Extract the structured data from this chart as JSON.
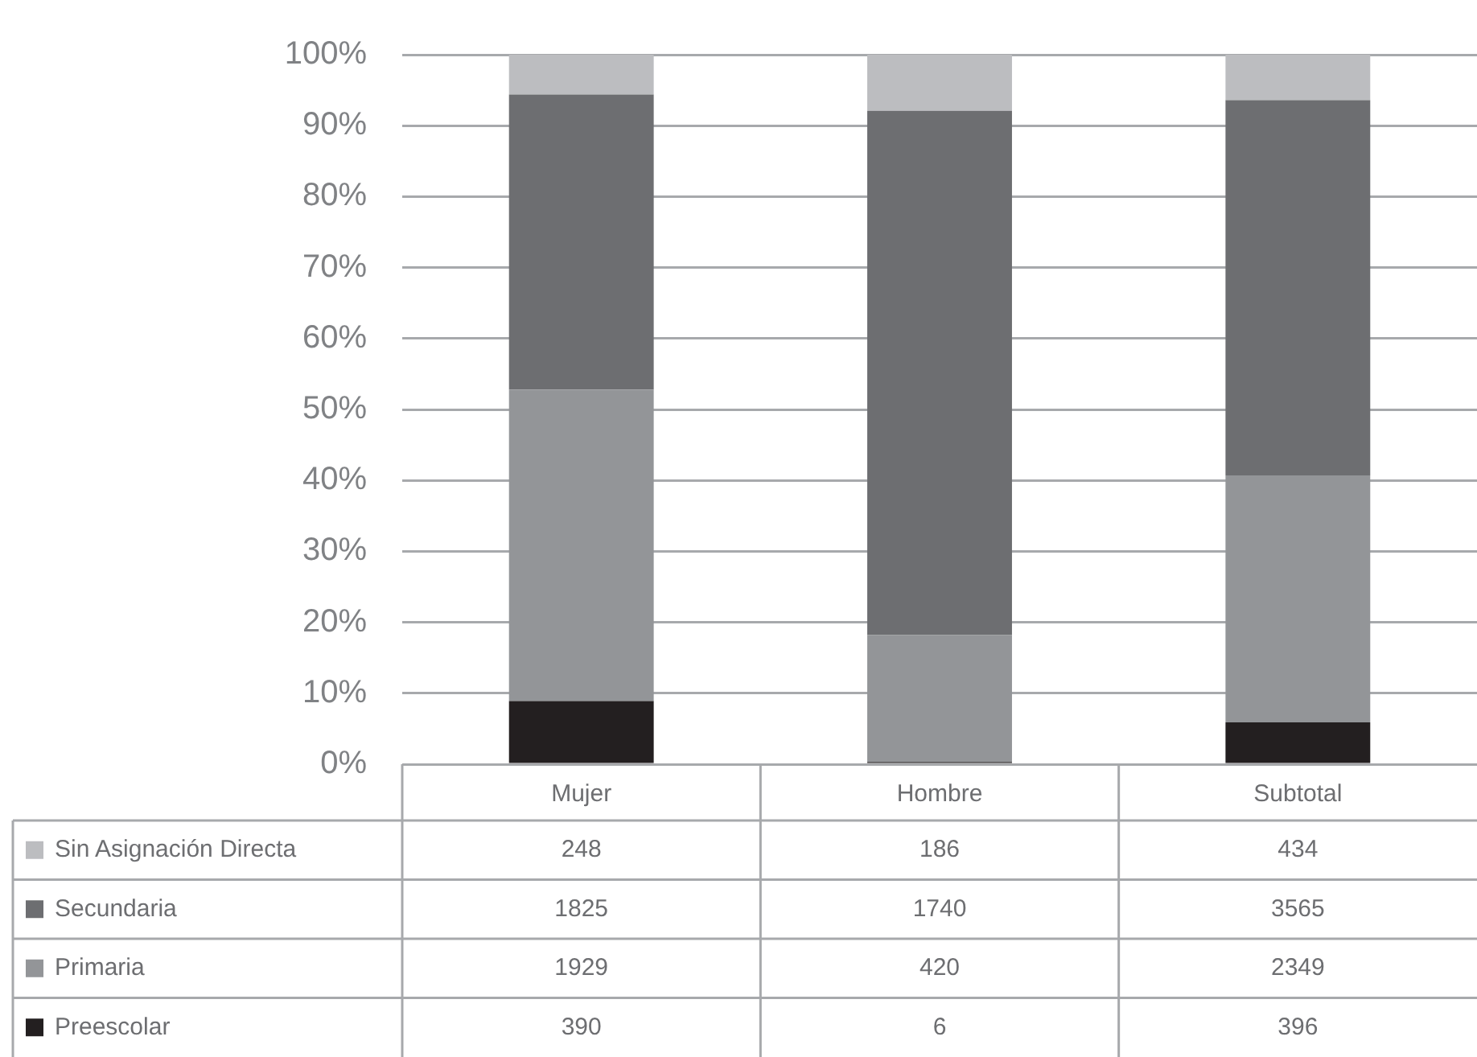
{
  "chart_data": {
    "type": "bar",
    "stacked": true,
    "categories": [
      "Mujer",
      "Hombre",
      "Subtotal"
    ],
    "series": [
      {
        "name": "Preescolar",
        "color": "#231f20",
        "values": [
          8.9,
          0.3,
          5.9
        ]
      },
      {
        "name": "Primaria",
        "color": "#939598",
        "values": [
          43.9,
          17.9,
          34.8
        ]
      },
      {
        "name": "Secundaria",
        "color": "#6d6e71",
        "values": [
          41.6,
          73.9,
          52.9
        ]
      },
      {
        "name": "Sin Asignación Directa",
        "color": "#bcbdc0",
        "values": [
          5.6,
          7.9,
          6.4
        ]
      }
    ],
    "ylim": [
      0,
      100
    ],
    "yticks": [
      {
        "value": 0,
        "label": "0%"
      },
      {
        "value": 10,
        "label": "10%"
      },
      {
        "value": 20,
        "label": "20%"
      },
      {
        "value": 30,
        "label": "30%"
      },
      {
        "value": 40,
        "label": "40%"
      },
      {
        "value": 50,
        "label": "50%"
      },
      {
        "value": 60,
        "label": "60%"
      },
      {
        "value": 70,
        "label": "70%"
      },
      {
        "value": 80,
        "label": "80%"
      },
      {
        "value": 90,
        "label": "90%"
      },
      {
        "value": 100,
        "label": "100%"
      }
    ],
    "annotations": [
      "248",
      "186",
      "434",
      "1825",
      "1740",
      "3565",
      "1929",
      "420",
      "2349",
      "390",
      "6",
      "396"
    ],
    "grid": "y",
    "legend": "bottom left"
  }
}
